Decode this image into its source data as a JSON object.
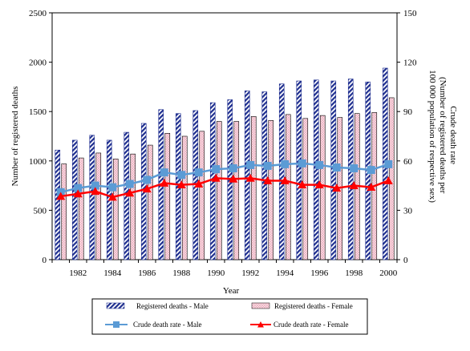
{
  "chart_data": {
    "type": "bar",
    "xlabel": "Year",
    "ylabel_left": "Number of registered deaths",
    "ylabel_right": "Crude death rate (Number of registered deaths per 100 000 population of respective sex)",
    "ylabel_right_lines": [
      "Crude death rate",
      "(Number of registered deaths per",
      "100 000 population of respective sex)"
    ],
    "ylim_left": [
      0,
      2500
    ],
    "yticks_left": [
      0,
      500,
      1000,
      1500,
      2000,
      2500
    ],
    "ylim_right": [
      0,
      150
    ],
    "yticks_right": [
      0,
      30,
      60,
      90,
      120,
      150
    ],
    "categories": [
      1981,
      1982,
      1983,
      1984,
      1985,
      1986,
      1987,
      1988,
      1989,
      1990,
      1991,
      1992,
      1993,
      1994,
      1995,
      1996,
      1997,
      1998,
      1999,
      2000
    ],
    "x_tick_labels": [
      "1982",
      "1984",
      "1986",
      "1988",
      "1990",
      "1992",
      "1994",
      "1996",
      "1998",
      "2000"
    ],
    "grid": false,
    "legend_position": "bottom",
    "series": [
      {
        "name": "Registered deaths - Male",
        "kind": "bar",
        "axis": "left",
        "style": "diagonal-stripes",
        "color": "#1f2f8f",
        "values": [
          1110,
          1210,
          1260,
          1210,
          1290,
          1380,
          1520,
          1480,
          1510,
          1590,
          1620,
          1710,
          1700,
          1780,
          1810,
          1820,
          1810,
          1830,
          1800,
          1940
        ]
      },
      {
        "name": "Registered deaths - Female",
        "kind": "bar",
        "axis": "left",
        "style": "pink-crosshatch",
        "color": "#f2b8c6",
        "values": [
          970,
          1030,
          1080,
          1020,
          1070,
          1160,
          1280,
          1250,
          1300,
          1400,
          1400,
          1450,
          1410,
          1470,
          1430,
          1460,
          1440,
          1480,
          1490,
          1640
        ]
      },
      {
        "name": "Crude death rate - Male",
        "kind": "line",
        "axis": "right",
        "marker": "square",
        "color": "#5b9bd5",
        "values": [
          41,
          43.5,
          45,
          44,
          46,
          48.5,
          53,
          51.5,
          53,
          55,
          55.5,
          57.5,
          57,
          58,
          58.5,
          57.5,
          56,
          55.5,
          54.5,
          58
        ]
      },
      {
        "name": "Crude death rate - Female",
        "kind": "line",
        "axis": "right",
        "marker": "triangle",
        "color": "#ff0000",
        "values": [
          38.5,
          40,
          41.5,
          38,
          40.5,
          43,
          46.5,
          45.5,
          46,
          49.5,
          49,
          49.5,
          48,
          48,
          45.5,
          45.5,
          43.5,
          45,
          44,
          48
        ]
      }
    ]
  }
}
